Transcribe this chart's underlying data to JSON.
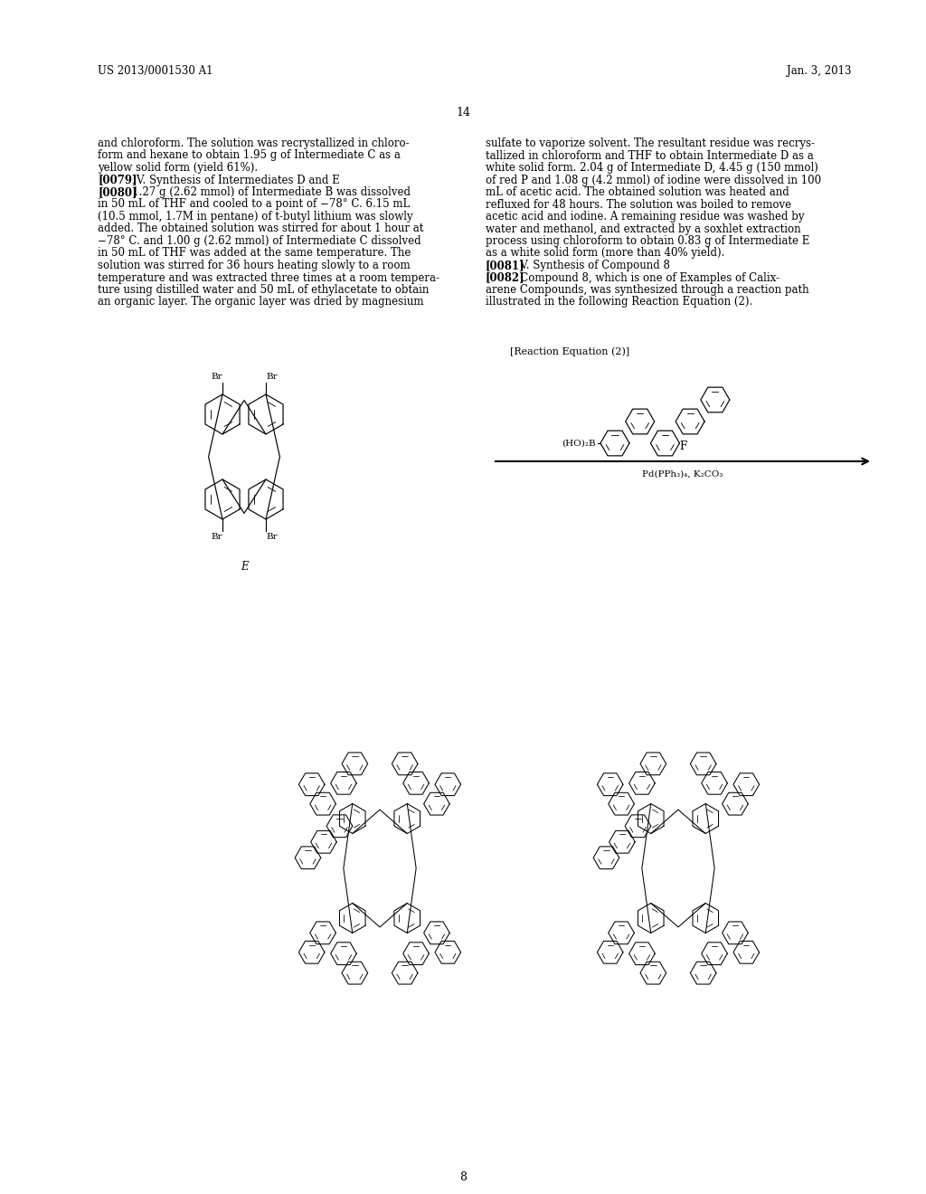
{
  "patent_number": "US 2013/0001530 A1",
  "date": "Jan. 3, 2013",
  "page_number": "14",
  "page_footer": "8",
  "background_color": "#ffffff",
  "text_color": "#000000",
  "left_column_text": "and chloroform. The solution was recrystallized in chloro-\nform and hexane to obtain 1.95 g of Intermediate C as a\nyellow solid form (yield 61%).\n[0079]   IV. Synthesis of Intermediates D and E\n[0080]   1.27 g (2.62 mmol) of Intermediate B was dissolved\nin 50 mL of THF and cooled to a point of −78° C. 6.15 mL\n(10.5 mmol, 1.7M in pentane) of t-butyl lithium was slowly\nadded. The obtained solution was stirred for about 1 hour at\n−78° C. and 1.00 g (2.62 mmol) of Intermediate C dissolved\nin 50 mL of THF was added at the same temperature. The\nsolution was stirred for 36 hours heating slowly to a room\ntemperature and was extracted three times at a room tempera-\nture using distilled water and 50 mL of ethylacetate to obtain\nan organic layer. The organic layer was dried by magnesium",
  "right_column_text": "sulfate to vaporize solvent. The resultant residue was recrys-\ntallized in chloroform and THF to obtain Intermediate D as a\nwhite solid form. 2.04 g of Intermediate D, 4.45 g (150 mmol)\nof red P and 1.08 g (4.2 mmol) of iodine were dissolved in 100\nmL of acetic acid. The obtained solution was heated and\nrefluxed for 48 hours. The solution was boiled to remove\nacetic acid and iodine. A remaining residue was washed by\nwater and methanol, and extracted by a soxhlet extraction\nprocess using chloroform to obtain 0.83 g of Intermediate E\nas a white solid form (more than 40% yield).\n[0081]   V. Synthesis of Compound 8\n[0082]   Compound 8, which is one of Examples of Calix-\narene Compounds, was synthesized through a reaction path\nillustrated in the following Reaction Equation (2).",
  "reaction_equation_label": "[Reaction Equation (2)]",
  "compound_e_label": "E",
  "reaction_arrow_label_top": "F",
  "reaction_arrow_label_bottom": "Pd(PPh₃)₄, K₂CO₃",
  "reactant_boronic_label": "(HO)₂B"
}
